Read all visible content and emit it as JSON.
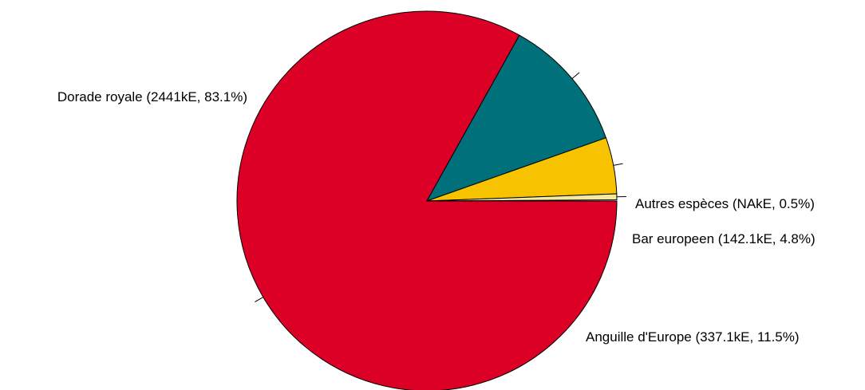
{
  "chart_data": {
    "type": "pie",
    "slices": [
      {
        "name": "Dorade royale",
        "value": 2441,
        "percent": 83.1,
        "label": "Dorade royale (2441kE, 83.1%)",
        "color": "#DC0026"
      },
      {
        "name": "Anguille d'Europe",
        "value": 337.1,
        "percent": 11.5,
        "label": "Anguille d'Europe (337.1kE, 11.5%)",
        "color": "#00707A"
      },
      {
        "name": "Bar europeen",
        "value": 142.1,
        "percent": 4.8,
        "label": "Bar europeen (142.1kE, 4.8%)",
        "color": "#F7C200"
      },
      {
        "name": "Autres espèces",
        "value": null,
        "percent": 0.5,
        "label": "Autres espèces (NAkE, 0.5%)",
        "color": "#F3E9A0"
      }
    ],
    "start_angle": "3 o'clock",
    "direction": "clockwise",
    "legend": "none"
  }
}
